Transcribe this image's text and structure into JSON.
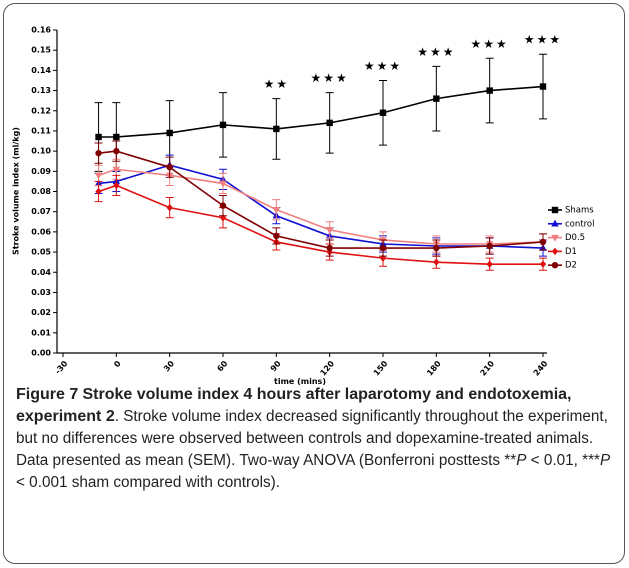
{
  "chart_data": {
    "type": "line",
    "xlabel": "time (mins)",
    "ylabel": "Stroke volume index (ml/kg)",
    "x": [
      -10,
      0,
      30,
      60,
      90,
      120,
      150,
      180,
      210,
      240
    ],
    "series": [
      {
        "name": "Shams",
        "color": "#000000",
        "marker": "square",
        "values": [
          0.107,
          0.107,
          0.109,
          0.113,
          0.111,
          0.114,
          0.119,
          0.126,
          0.13,
          0.132
        ],
        "errors": [
          0.017,
          0.017,
          0.016,
          0.016,
          0.015,
          0.015,
          0.016,
          0.016,
          0.016,
          0.016
        ]
      },
      {
        "name": "control",
        "color": "#1010d0",
        "marker": "triangle-up",
        "values": [
          0.084,
          0.085,
          0.093,
          0.086,
          0.068,
          0.058,
          0.054,
          0.053,
          0.053,
          0.052
        ],
        "errors": [
          0.005,
          0.005,
          0.005,
          0.005,
          0.004,
          0.004,
          0.004,
          0.004,
          0.004,
          0.004
        ]
      },
      {
        "name": "D0.5",
        "color": "#f08080",
        "marker": "triangle-down",
        "values": [
          0.088,
          0.091,
          0.088,
          0.084,
          0.071,
          0.061,
          0.056,
          0.054,
          0.054,
          0.055
        ],
        "errors": [
          0.005,
          0.005,
          0.005,
          0.005,
          0.005,
          0.004,
          0.004,
          0.004,
          0.004,
          0.004
        ]
      },
      {
        "name": "D1",
        "color": "#e01010",
        "marker": "diamond",
        "values": [
          0.08,
          0.083,
          0.072,
          0.067,
          0.055,
          0.05,
          0.047,
          0.045,
          0.044,
          0.044
        ],
        "errors": [
          0.005,
          0.005,
          0.005,
          0.005,
          0.004,
          0.004,
          0.004,
          0.003,
          0.003,
          0.003
        ]
      },
      {
        "name": "D2",
        "color": "#800000",
        "marker": "circle",
        "values": [
          0.099,
          0.1,
          0.092,
          0.073,
          0.058,
          0.052,
          0.052,
          0.052,
          0.053,
          0.055
        ],
        "errors": [
          0.005,
          0.005,
          0.005,
          0.005,
          0.004,
          0.004,
          0.004,
          0.004,
          0.004,
          0.004
        ]
      }
    ],
    "annotations": [
      {
        "x": 90,
        "text": "★★"
      },
      {
        "x": 120,
        "text": "★★★"
      },
      {
        "x": 150,
        "text": "★★★"
      },
      {
        "x": 180,
        "text": "★★★"
      },
      {
        "x": 210,
        "text": "★★★"
      },
      {
        "x": 240,
        "text": "★★★"
      }
    ],
    "xlim": [
      -30,
      240
    ],
    "xticks": [
      -30,
      0,
      30,
      60,
      90,
      120,
      150,
      180,
      210,
      240
    ],
    "ylim": [
      0,
      0.16
    ],
    "yticks": [
      {
        "value": 0,
        "label": "0.00"
      },
      0.01,
      0.02,
      0.03,
      0.04,
      0.05,
      0.06,
      0.07,
      0.08,
      0.09,
      {
        "value": 0.1,
        "label": "0.10"
      },
      0.11,
      0.12,
      0.13,
      0.14,
      0.15,
      0.16
    ],
    "legend": "right"
  },
  "caption": {
    "label": "Figure 7",
    "title": "Stroke volume index 4 hours after laparotomy and endotoxemia, experiment 2",
    "body": [
      ". Stroke volume index decreased significantly throughout the experiment, but no differences were observed between controls and dopexamine-treated animals. Data presented as mean (SEM). Two-way ANOVA (Bonferroni posttests **",
      "P",
      " < 0.01, ***",
      "P",
      " < 0.001 sham compared with controls)."
    ]
  }
}
